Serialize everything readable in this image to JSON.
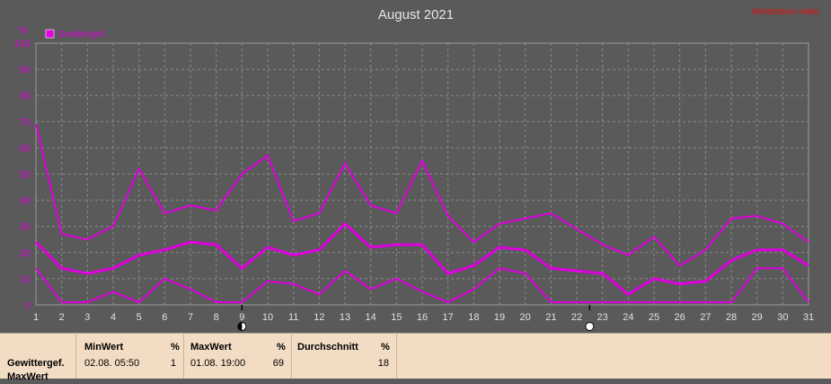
{
  "title": "August 2021",
  "watermark": "Weltstation Halle",
  "y_unit": "%",
  "legend": {
    "label": "Gewittergef.",
    "color": "#e000e0"
  },
  "colors": {
    "background": "#5a5a5a",
    "series": "#e000e0",
    "footer": "#f2dcc3"
  },
  "markers": [
    {
      "x": 9,
      "phase": "half-moon-icon"
    },
    {
      "x": 22.5,
      "phase": "full-moon-icon"
    }
  ],
  "chart_data": {
    "type": "line",
    "title": "August 2021",
    "x": [
      1,
      2,
      3,
      4,
      5,
      6,
      7,
      8,
      9,
      10,
      11,
      12,
      13,
      14,
      15,
      16,
      17,
      18,
      19,
      20,
      21,
      22,
      23,
      24,
      25,
      26,
      27,
      28,
      29,
      30,
      31
    ],
    "xlim": [
      1,
      31
    ],
    "ylim": [
      0,
      100
    ],
    "yticks": [
      0,
      10,
      20,
      30,
      40,
      50,
      60,
      70,
      80,
      90,
      100
    ],
    "ylabel": "%",
    "grid": true,
    "legend_position": "top-left",
    "series": [
      {
        "name": "Gewittergef.",
        "role": "max",
        "values": [
          69,
          27,
          25,
          30,
          52,
          35,
          38,
          36,
          50,
          57,
          32,
          35,
          54,
          38,
          35,
          55,
          34,
          24,
          31,
          33,
          35,
          29,
          23,
          19,
          26,
          15,
          21,
          33,
          34,
          31,
          24
        ]
      },
      {
        "role": "avg",
        "values": [
          24,
          14,
          12,
          14,
          19,
          21,
          24,
          23,
          14,
          22,
          19,
          21,
          31,
          22,
          23,
          23,
          12,
          15,
          22,
          21,
          14,
          13,
          12,
          4,
          10,
          8,
          9,
          17,
          21,
          21,
          15
        ]
      },
      {
        "role": "min",
        "values": [
          14,
          1,
          1,
          5,
          1,
          10,
          6,
          1,
          1,
          9,
          8,
          4,
          13,
          6,
          10,
          5,
          1,
          6,
          14,
          12,
          1,
          1,
          1,
          1,
          1,
          1,
          1,
          1,
          14,
          14,
          1
        ]
      }
    ]
  },
  "footer": {
    "row_label": "Gewittergef.",
    "row_label2": "MaxWert",
    "min": {
      "header": "MinWert",
      "unit": "%",
      "date": "02.08.  05:50",
      "value": "1"
    },
    "max": {
      "header": "MaxWert",
      "unit": "%",
      "date": "01.08.  19:00",
      "value": "69"
    },
    "avg": {
      "header": "Durchschnitt",
      "unit": "%",
      "value": "18"
    }
  }
}
